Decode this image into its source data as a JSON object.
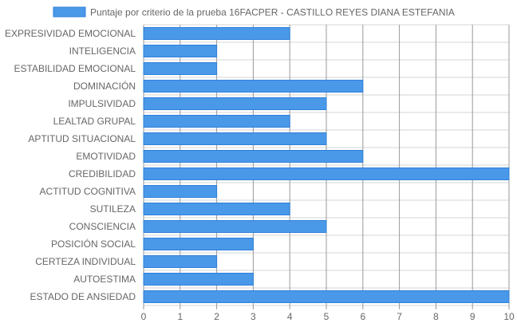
{
  "chart_data": {
    "type": "bar",
    "orientation": "horizontal",
    "legend_position": "top",
    "grid": true,
    "categories": [
      "EXPRESIVIDAD EMOCIONAL",
      "INTELIGENCIA",
      "ESTABILIDAD EMOCIONAL",
      "DOMINACIÓN",
      "IMPULSIVIDAD",
      "LEALTAD GRUPAL",
      "APTITUD SITUACIONAL",
      "EMOTIVIDAD",
      "CREDIBILIDAD",
      "ACTITUD COGNITIVA",
      "SUTILEZA",
      "CONSCIENCIA",
      "POSICIÓN SOCIAL",
      "CERTEZA INDIVIDUAL",
      "AUTOESTIMA",
      "ESTADO DE ANSIEDAD"
    ],
    "series": [
      {
        "name": "Puntaje por criterio de la prueba 16FACPER - CASTILLO REYES DIANA ESTEFANIA",
        "values": [
          4,
          2,
          2,
          6,
          5,
          4,
          5,
          6,
          10,
          2,
          4,
          5,
          3,
          2,
          3,
          10
        ],
        "color": "#4a98e8",
        "border_color": "#2f80d9"
      }
    ],
    "xlim": [
      0,
      10
    ],
    "xticks": [
      "0",
      "1",
      "2",
      "3",
      "4",
      "5",
      "6",
      "7",
      "8",
      "9",
      "10"
    ]
  }
}
